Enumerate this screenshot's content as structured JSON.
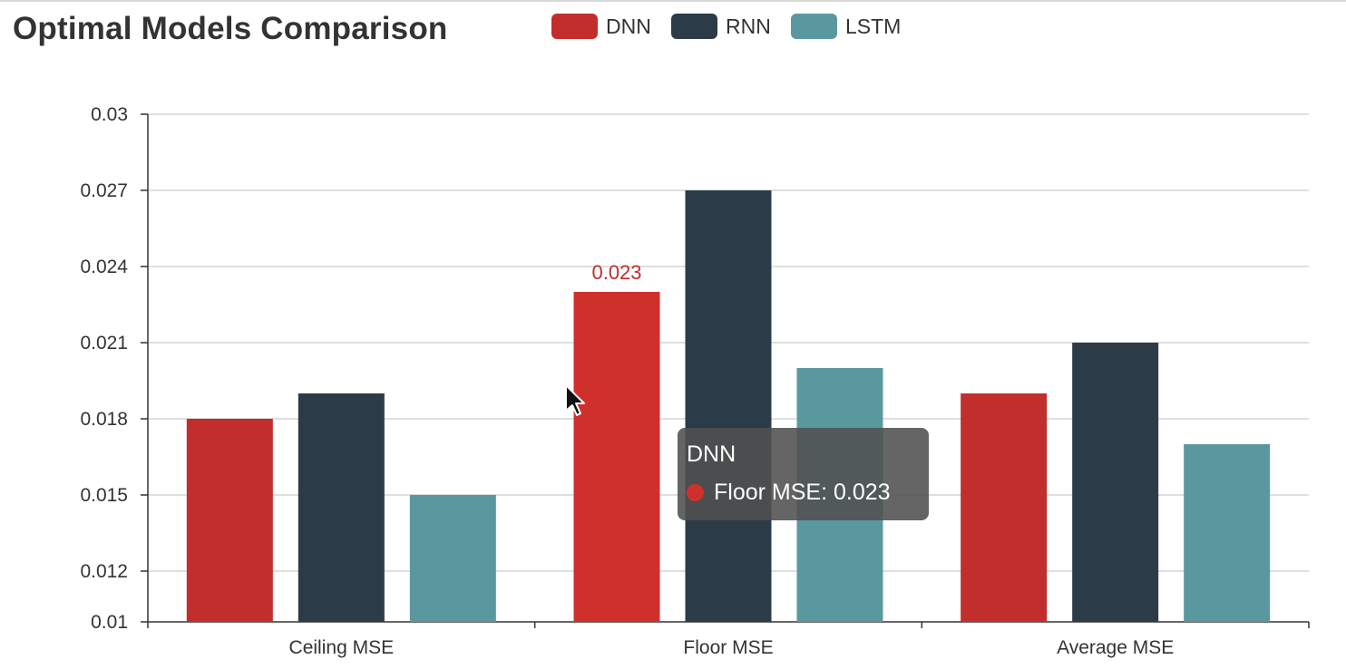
{
  "chart_data": {
    "type": "bar",
    "title": "Optimal Models Comparison",
    "categories": [
      "Ceiling MSE",
      "Floor MSE",
      "Average MSE"
    ],
    "series": [
      {
        "name": "DNN",
        "color": "#c12e2b",
        "values": [
          0.018,
          0.023,
          0.019
        ]
      },
      {
        "name": "RNN",
        "color": "#2b3c48",
        "values": [
          0.019,
          0.027,
          0.021
        ]
      },
      {
        "name": "LSTM",
        "color": "#5a98a0",
        "values": [
          0.015,
          0.02,
          0.017
        ]
      }
    ],
    "ylim": [
      0.01,
      0.03
    ],
    "yticks": [
      "0.01",
      "0.012",
      "0.015",
      "0.018",
      "0.021",
      "0.024",
      "0.027",
      "0.03"
    ],
    "grid": true,
    "legend_position": "top",
    "highlight": {
      "series": "DNN",
      "category": "Floor MSE",
      "label": "0.023",
      "label_color": "#c12e2b",
      "bar_color": "#d0302c"
    }
  },
  "tooltip": {
    "title": "DNN",
    "row": "Floor MSE: 0.023",
    "dot_color": "#d0302c"
  }
}
